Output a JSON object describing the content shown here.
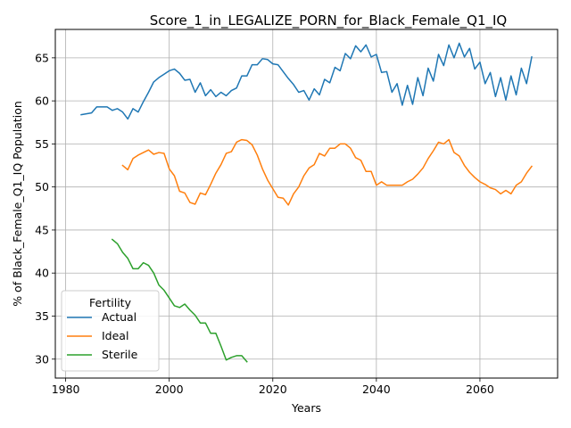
{
  "chart_data": {
    "type": "line",
    "title": "Score_1_in_LEGALIZE_PORN_for_Black_Female_Q1_IQ",
    "xlabel": "Years",
    "ylabel": "% of Black_Female_Q1_IQ Population",
    "xlim": [
      1978,
      2075
    ],
    "ylim": [
      27.8,
      68.3
    ],
    "xticks": [
      1980,
      2000,
      2020,
      2040,
      2060
    ],
    "yticks": [
      30,
      35,
      40,
      45,
      50,
      55,
      60,
      65
    ],
    "grid": true,
    "legend": {
      "title": "Fertility",
      "placement": "lower-left"
    },
    "series": [
      {
        "name": "Actual",
        "color": "#1f77b4",
        "x": [
          1983,
          1984,
          1985,
          1986,
          1987,
          1988,
          1989,
          1990,
          1991,
          1992,
          1993,
          1994,
          1995,
          1996,
          1997,
          1998,
          1999,
          2000,
          2001,
          2002,
          2003,
          2004,
          2005,
          2006,
          2007,
          2008,
          2009,
          2010,
          2011,
          2012,
          2013,
          2014,
          2015,
          2016,
          2017,
          2018,
          2019,
          2020,
          2021,
          2022,
          2023,
          2024,
          2025,
          2026,
          2027,
          2028,
          2029,
          2030,
          2031,
          2032,
          2033,
          2034,
          2035,
          2036,
          2037,
          2038,
          2039,
          2040,
          2041,
          2042,
          2043,
          2044,
          2045,
          2046,
          2047,
          2048,
          2049,
          2050,
          2051,
          2052,
          2053,
          2054,
          2055,
          2056,
          2057,
          2058,
          2059,
          2060,
          2061,
          2062,
          2063,
          2064,
          2065,
          2066,
          2067,
          2068,
          2069,
          2070
        ],
        "y": [
          58.4,
          58.5,
          58.6,
          59.3,
          59.3,
          59.3,
          58.9,
          59.1,
          58.7,
          57.9,
          59.1,
          58.7,
          59.9,
          61.0,
          62.2,
          62.7,
          63.1,
          63.5,
          63.7,
          63.2,
          62.4,
          62.5,
          61.0,
          62.1,
          60.6,
          61.3,
          60.5,
          61.0,
          60.6,
          61.2,
          61.5,
          62.9,
          62.9,
          64.2,
          64.2,
          64.9,
          64.8,
          64.3,
          64.2,
          63.4,
          62.6,
          61.9,
          61.0,
          61.2,
          60.1,
          61.4,
          60.7,
          62.5,
          62.1,
          63.9,
          63.5,
          65.5,
          64.9,
          66.4,
          65.7,
          66.5,
          65.1,
          65.4,
          63.3,
          63.4,
          61.0,
          62.0,
          59.5,
          61.8,
          59.6,
          62.7,
          60.6,
          63.8,
          62.3,
          65.4,
          64.1,
          66.5,
          65.0,
          66.7,
          65.1,
          66.1,
          63.7,
          64.5,
          62.0,
          63.3,
          60.5,
          62.7,
          60.1,
          62.9,
          60.7,
          63.8,
          62.0,
          65.1
        ]
      },
      {
        "name": "Ideal",
        "color": "#ff7f0e",
        "x": [
          1991,
          1992,
          1993,
          1994,
          1995,
          1996,
          1997,
          1998,
          1999,
          2000,
          2001,
          2002,
          2003,
          2004,
          2005,
          2006,
          2007,
          2008,
          2009,
          2010,
          2011,
          2012,
          2013,
          2014,
          2015,
          2016,
          2017,
          2018,
          2019,
          2020,
          2021,
          2022,
          2023,
          2024,
          2025,
          2026,
          2027,
          2028,
          2029,
          2030,
          2031,
          2032,
          2033,
          2034,
          2035,
          2036,
          2037,
          2038,
          2039,
          2040,
          2041,
          2042,
          2043,
          2044,
          2045,
          2046,
          2047,
          2048,
          2049,
          2050,
          2051,
          2052,
          2053,
          2054,
          2055,
          2056,
          2057,
          2058,
          2059,
          2060,
          2061,
          2062,
          2063,
          2064,
          2065,
          2066,
          2067,
          2068,
          2069,
          2070
        ],
        "y": [
          52.5,
          52.0,
          53.3,
          53.7,
          54.0,
          54.3,
          53.8,
          54.0,
          53.9,
          52.1,
          51.3,
          49.5,
          49.3,
          48.2,
          48.0,
          49.3,
          49.1,
          50.3,
          51.6,
          52.6,
          53.9,
          54.1,
          55.2,
          55.5,
          55.4,
          54.9,
          53.7,
          52.1,
          50.8,
          49.8,
          48.8,
          48.7,
          47.9,
          49.2,
          50.0,
          51.3,
          52.2,
          52.6,
          53.9,
          53.6,
          54.5,
          54.5,
          55.0,
          55.0,
          54.5,
          53.4,
          53.1,
          51.8,
          51.8,
          50.2,
          50.6,
          50.2,
          50.2,
          50.2,
          50.2,
          50.6,
          50.9,
          51.5,
          52.2,
          53.3,
          54.2,
          55.2,
          55.0,
          55.5,
          54.0,
          53.6,
          52.5,
          51.7,
          51.1,
          50.6,
          50.3,
          49.9,
          49.7,
          49.2,
          49.6,
          49.2,
          50.2,
          50.6,
          51.6,
          52.4
        ]
      },
      {
        "name": "Sterile",
        "color": "#2ca02c",
        "x": [
          1989,
          1990,
          1991,
          1992,
          1993,
          1994,
          1995,
          1996,
          1997,
          1998,
          1999,
          2000,
          2001,
          2002,
          2003,
          2004,
          2005,
          2006,
          2007,
          2008,
          2009,
          2010,
          2011,
          2012,
          2013,
          2014,
          2015
        ],
        "y": [
          43.9,
          43.4,
          42.4,
          41.7,
          40.5,
          40.5,
          41.2,
          40.9,
          40.0,
          38.6,
          38.0,
          37.1,
          36.2,
          36.0,
          36.4,
          35.7,
          35.1,
          34.2,
          34.2,
          33.0,
          33.0,
          31.5,
          29.9,
          30.2,
          30.4,
          30.4,
          29.7
        ]
      }
    ]
  }
}
